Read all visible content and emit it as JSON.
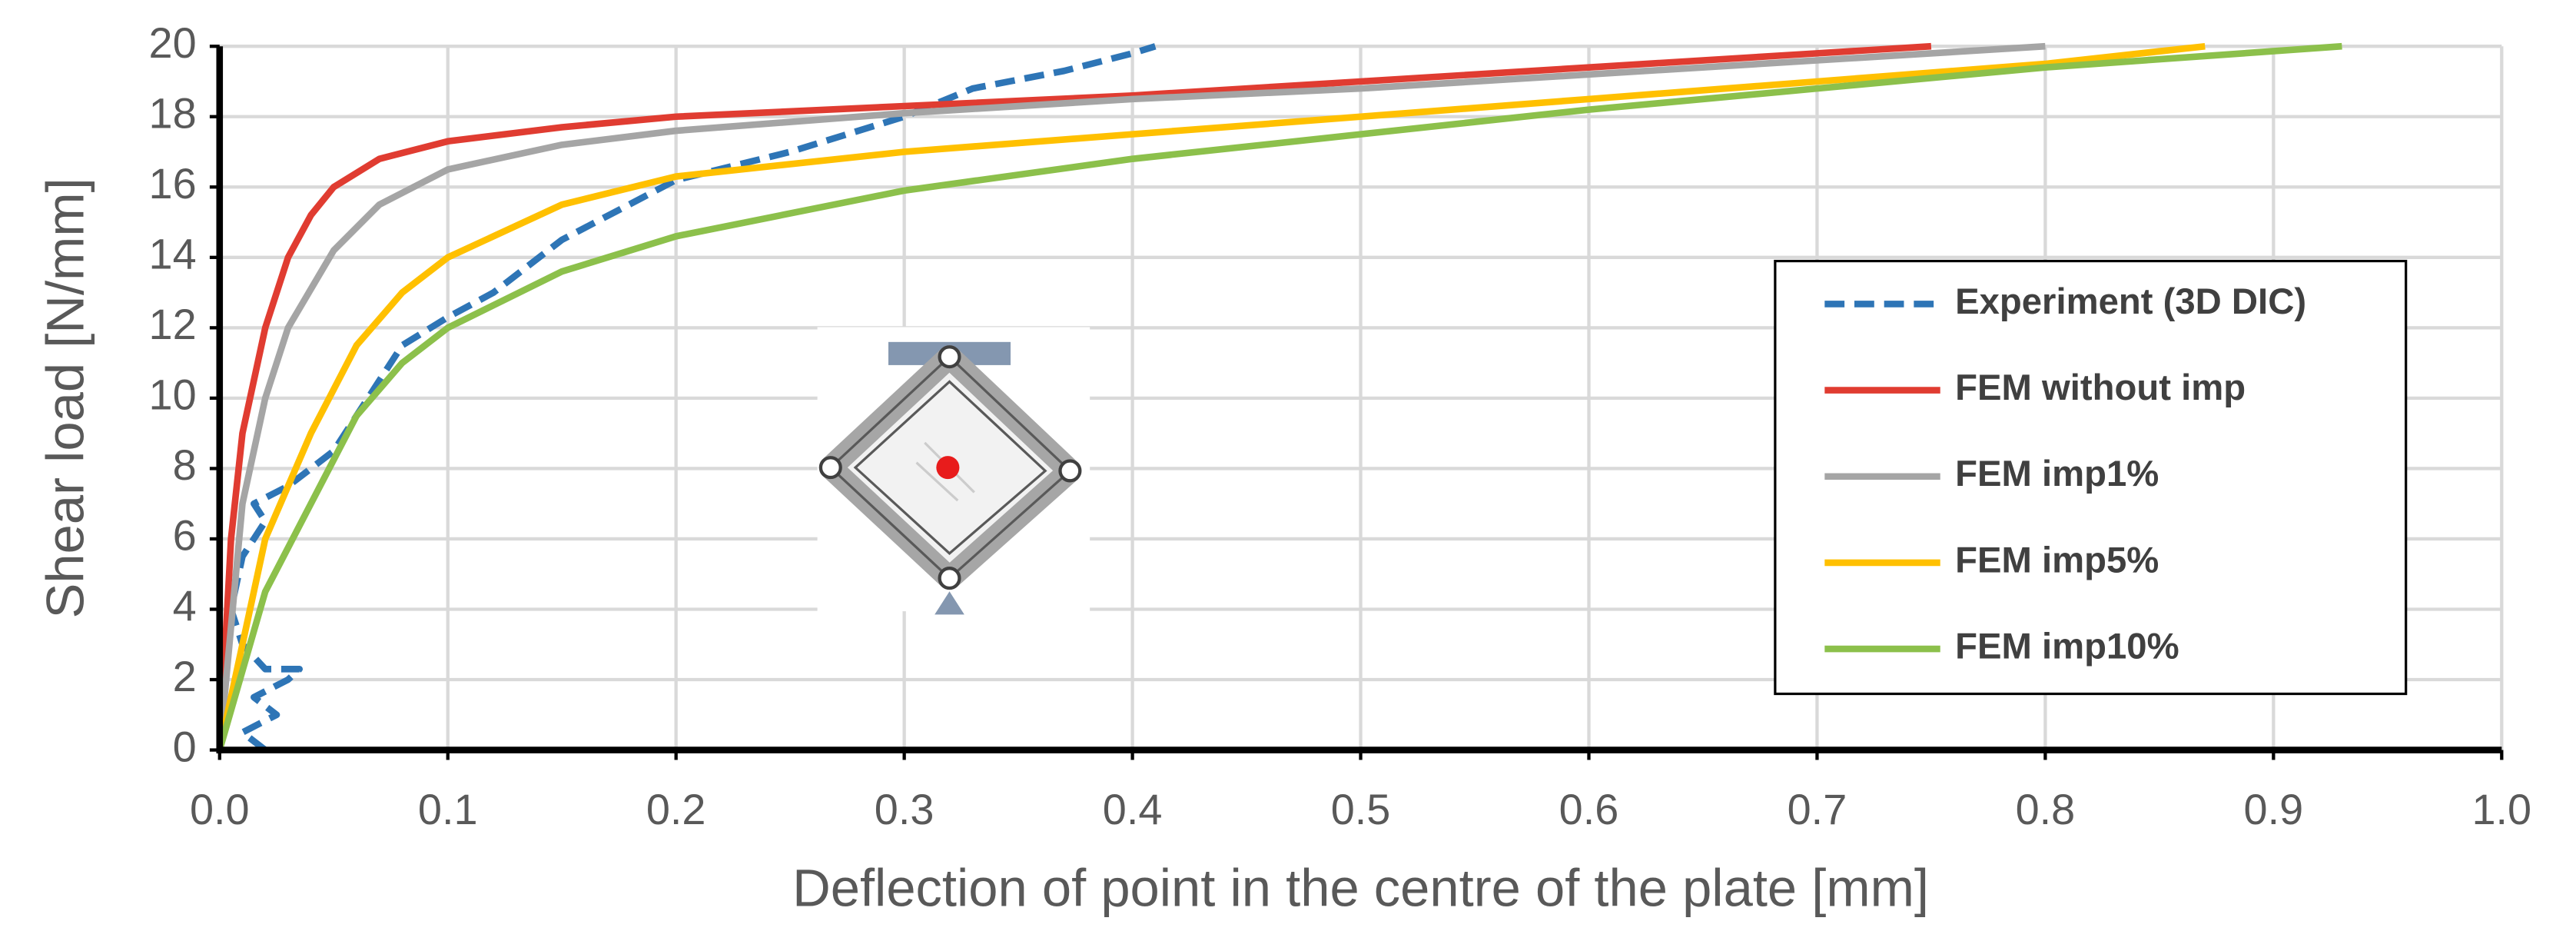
{
  "chart_data": {
    "type": "line",
    "xlabel": "Deflection of point in the centre of the plate [mm]",
    "ylabel": "Shear load [N/mm]",
    "xlim": [
      0,
      1
    ],
    "ylim": [
      0,
      20
    ],
    "xticks": [
      {
        "value": 0,
        "label": "0.0"
      },
      0.1,
      0.2,
      0.3,
      0.4,
      0.5,
      0.6,
      0.7,
      0.8,
      0.9,
      {
        "value": 1,
        "label": "1.0"
      }
    ],
    "yticks": [
      0,
      2,
      4,
      6,
      8,
      10,
      12,
      14,
      16,
      18,
      20
    ],
    "grid": true,
    "series": [
      {
        "name": "Experiment (3D DIC)",
        "color": "#2e75b6",
        "dashed": true,
        "x": [
          0.02,
          0.01,
          0.025,
          0.015,
          0.03,
          0.035,
          0.02,
          0.01,
          0.005,
          0.01,
          0.02,
          0.015,
          0.03,
          0.05,
          0.06,
          0.07,
          0.08,
          0.1,
          0.12,
          0.15,
          0.2,
          0.25,
          0.3,
          0.33,
          0.37,
          0.4,
          0.41
        ],
        "values": [
          0,
          0.5,
          1,
          1.5,
          2,
          2.3,
          2.3,
          3,
          4,
          5.5,
          6.5,
          7,
          7.5,
          8.5,
          9.5,
          10.5,
          11.5,
          12.3,
          13,
          14.5,
          16.2,
          17,
          18,
          18.8,
          19.3,
          19.8,
          20
        ]
      },
      {
        "name": "FEM without imp",
        "color": "#e03c31",
        "x": [
          0,
          0.005,
          0.01,
          0.02,
          0.03,
          0.04,
          0.05,
          0.07,
          0.1,
          0.15,
          0.2,
          0.3,
          0.4,
          0.5,
          0.6,
          0.7,
          0.75
        ],
        "values": [
          0,
          6,
          9,
          12,
          14,
          15.2,
          16,
          16.8,
          17.3,
          17.7,
          18,
          18.3,
          18.6,
          19,
          19.4,
          19.8,
          20
        ]
      },
      {
        "name": "FEM imp1%",
        "color": "#a5a5a5",
        "x": [
          0,
          0.01,
          0.02,
          0.03,
          0.05,
          0.07,
          0.1,
          0.15,
          0.2,
          0.3,
          0.4,
          0.5,
          0.6,
          0.7,
          0.8
        ],
        "values": [
          0,
          7,
          10,
          12,
          14.2,
          15.5,
          16.5,
          17.2,
          17.6,
          18.1,
          18.5,
          18.8,
          19.2,
          19.6,
          20
        ]
      },
      {
        "name": "FEM imp5%",
        "color": "#ffc000",
        "x": [
          0,
          0.02,
          0.04,
          0.06,
          0.08,
          0.1,
          0.15,
          0.2,
          0.3,
          0.4,
          0.5,
          0.6,
          0.7,
          0.8,
          0.87
        ],
        "values": [
          0,
          6,
          9,
          11.5,
          13,
          14,
          15.5,
          16.3,
          17,
          17.5,
          18,
          18.5,
          19,
          19.5,
          20
        ]
      },
      {
        "name": "FEM imp10%",
        "color": "#8cc04b",
        "x": [
          0,
          0.02,
          0.04,
          0.06,
          0.08,
          0.1,
          0.15,
          0.2,
          0.3,
          0.4,
          0.5,
          0.6,
          0.7,
          0.8,
          0.93
        ],
        "values": [
          0,
          4.5,
          7,
          9.5,
          11,
          12,
          13.6,
          14.6,
          15.9,
          16.8,
          17.5,
          18.2,
          18.8,
          19.4,
          20
        ]
      }
    ]
  }
}
